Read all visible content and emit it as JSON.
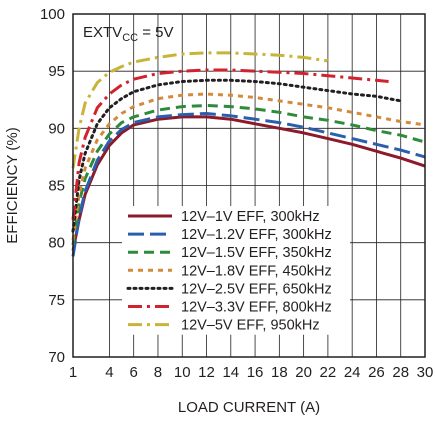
{
  "chart_data": {
    "type": "line",
    "xlabel": "LOAD CURRENT (A)",
    "ylabel": "EFFICIENCY (%)",
    "xlim": [
      1,
      30
    ],
    "ylim": [
      70,
      100
    ],
    "xticks": [
      1,
      4,
      6,
      8,
      10,
      12,
      14,
      16,
      18,
      20,
      22,
      24,
      26,
      28,
      30
    ],
    "xtick_labels": [
      "1",
      "4",
      "6",
      "8",
      "10",
      "12",
      "14",
      "16",
      "18",
      "20",
      "22",
      "24",
      "26",
      "28",
      "30"
    ],
    "yticks": [
      70,
      75,
      80,
      85,
      90,
      95,
      100
    ],
    "ytick_labels": [
      "70",
      "75",
      "80",
      "85",
      "90",
      "95",
      "100"
    ],
    "grid": true,
    "legend_position": "bottom-center",
    "annotation": {
      "prefix": "EXTV",
      "sub": "CC",
      "suffix": " = 5V"
    },
    "series": [
      {
        "name": "12V–1V EFF, 300kHz",
        "color": "#8b1a2b",
        "dash": "solid",
        "x": [
          1,
          1.5,
          2,
          3,
          4,
          5,
          6,
          8,
          10,
          12,
          14,
          16,
          18,
          20,
          22,
          24,
          26,
          28,
          30
        ],
        "y": [
          79.3,
          82,
          84.2,
          86.8,
          88.5,
          89.6,
          90.3,
          90.8,
          91.0,
          91.0,
          90.8,
          90.4,
          90.0,
          89.6,
          89.1,
          88.6,
          88.0,
          87.4,
          86.7
        ]
      },
      {
        "name": "12V–1.2V EFF, 300kHz",
        "color": "#2b5fad",
        "dash": "longdash",
        "x": [
          1,
          1.5,
          2,
          3,
          4,
          5,
          6,
          8,
          10,
          12,
          14,
          16,
          18,
          20,
          22,
          24,
          26,
          28,
          30
        ],
        "y": [
          78.8,
          82.2,
          84.5,
          87.2,
          88.9,
          89.9,
          90.5,
          91.0,
          91.2,
          91.3,
          91.1,
          90.8,
          90.5,
          90.1,
          89.6,
          89.1,
          88.6,
          88.1,
          87.5
        ]
      },
      {
        "name": "12V–1.5V EFF, 350kHz",
        "color": "#2e8b3a",
        "dash": "dash",
        "x": [
          1,
          1.5,
          2,
          3,
          4,
          5,
          6,
          8,
          10,
          12,
          14,
          16,
          18,
          20,
          22,
          24,
          26,
          28,
          30
        ],
        "y": [
          79.8,
          83.5,
          85.6,
          88.0,
          89.5,
          90.5,
          91.0,
          91.6,
          91.9,
          92.0,
          91.9,
          91.7,
          91.4,
          91.0,
          90.7,
          90.3,
          89.8,
          89.4,
          88.8
        ]
      },
      {
        "name": "12V–1.8V EFF, 450kHz",
        "color": "#d48a3c",
        "dash": "shortdash",
        "x": [
          1,
          1.5,
          2,
          3,
          4,
          5,
          6,
          8,
          10,
          12,
          14,
          16,
          18,
          20,
          22,
          24,
          26,
          28,
          30
        ],
        "y": [
          80.2,
          84.2,
          86.5,
          89.0,
          90.4,
          91.3,
          91.9,
          92.6,
          92.9,
          93.0,
          92.9,
          92.7,
          92.4,
          92.1,
          91.8,
          91.4,
          91.0,
          90.6,
          90.3
        ]
      },
      {
        "name": "12V–2.5V EFF, 650kHz",
        "color": "#231f20",
        "dash": "dot",
        "x": [
          1,
          1.5,
          2,
          3,
          4,
          5,
          6,
          8,
          10,
          12,
          14,
          16,
          18,
          20,
          22,
          24,
          26,
          28
        ],
        "y": [
          81.0,
          85.5,
          87.8,
          90.4,
          91.8,
          92.6,
          93.2,
          93.8,
          94.1,
          94.2,
          94.2,
          94.1,
          93.9,
          93.6,
          93.3,
          93.0,
          92.8,
          92.4
        ]
      },
      {
        "name": "12V–3.3V EFF, 800kHz",
        "color": "#d1222e",
        "dash": "dashdot",
        "x": [
          1,
          1.5,
          2,
          3,
          4,
          5,
          6,
          8,
          10,
          12,
          14,
          16,
          18,
          20,
          22,
          24,
          26,
          27
        ],
        "y": [
          82.0,
          87.0,
          89.2,
          91.8,
          93.0,
          93.8,
          94.3,
          94.8,
          95.0,
          95.1,
          95.1,
          95.0,
          94.9,
          94.8,
          94.6,
          94.4,
          94.2,
          94.1
        ]
      },
      {
        "name": "12V–5V EFF, 950kHz",
        "color": "#c8b43a",
        "dash": "dashdot",
        "x": [
          1,
          1.5,
          2,
          3,
          4,
          5,
          6,
          8,
          10,
          12,
          14,
          16,
          18,
          20,
          22
        ],
        "y": [
          86.5,
          90.0,
          92.2,
          94.0,
          94.9,
          95.4,
          95.8,
          96.2,
          96.5,
          96.6,
          96.6,
          96.5,
          96.4,
          96.2,
          95.9
        ]
      }
    ]
  }
}
